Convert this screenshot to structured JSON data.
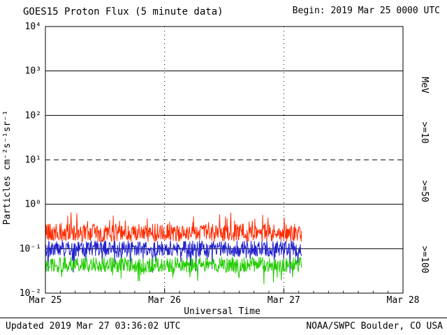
{
  "header": {
    "title": "GOES15 Proton Flux (5 minute data)",
    "begin": "Begin: 2019 Mar 25 0000 UTC"
  },
  "footer": {
    "updated": "Updated 2019 Mar 27 03:36:02 UTC",
    "source": "NOAA/SWPC Boulder, CO USA"
  },
  "chart_data": {
    "type": "line",
    "title": "GOES15 Proton Flux (5 minute data)",
    "xlabel": "Universal Time",
    "ylabel": "Particles cm⁻²s⁻¹sr⁻¹",
    "unit_label": "MeV",
    "y_scale": "log10",
    "ylim_log10": [
      -2,
      4
    ],
    "x_span_days": 3,
    "grid": "decade horizontal lines, dotted vertical day lines",
    "legend_position": "right edge, rotated labels",
    "x_ticks": [
      {
        "label": "Mar 25",
        "day": 0
      },
      {
        "label": "Mar 26",
        "day": 1
      },
      {
        "label": "Mar 27",
        "day": 2
      },
      {
        "label": "Mar 28",
        "day": 3
      }
    ],
    "y_ticks": [
      {
        "label": "10⁴",
        "log10": 4
      },
      {
        "label": "10³",
        "log10": 3
      },
      {
        "label": "10²",
        "log10": 2
      },
      {
        "label": "10¹",
        "log10": 1
      },
      {
        "label": "10⁰",
        "log10": 0
      },
      {
        "label": "10⁻¹",
        "log10": -1
      },
      {
        "label": "10⁻²",
        "log10": -2
      }
    ],
    "y_gridlines": [
      {
        "log10": 3,
        "style": "solid"
      },
      {
        "log10": 2,
        "style": "solid"
      },
      {
        "log10": 1,
        "style": "dashed"
      },
      {
        "log10": 0,
        "style": "solid"
      },
      {
        "log10": -1,
        "style": "solid"
      }
    ],
    "x_gridline_days": [
      1,
      2
    ],
    "data_begin": "2019 Mar 25 0000 UTC",
    "data_end_day": 2.15,
    "points_per_day": 288,
    "seed": 20190325,
    "series": [
      {
        "name": ">=10",
        "color": "#ff2a00",
        "mean_log10": -0.64,
        "spread_log10": 0.2,
        "spike_prob": 0.08,
        "spike_log10": 0.28,
        "description": "noisy band ~0.13 to 0.45 particles, centered near 0.22"
      },
      {
        "name": ">=50",
        "color": "#2222cc",
        "mean_log10": -1.0,
        "spread_log10": 0.18,
        "spike_prob": 0.06,
        "spike_log10": -0.45,
        "description": "noisy band ~0.06 to 0.15 particles, centered near 0.10 with downward dips"
      },
      {
        "name": ">=100",
        "color": "#22cc00",
        "mean_log10": -1.36,
        "spread_log10": 0.17,
        "spike_prob": 0.06,
        "spike_log10": -0.3,
        "description": "noisy band ~0.03 to 0.065 particles, centered near 0.044 with downward dips"
      }
    ]
  }
}
